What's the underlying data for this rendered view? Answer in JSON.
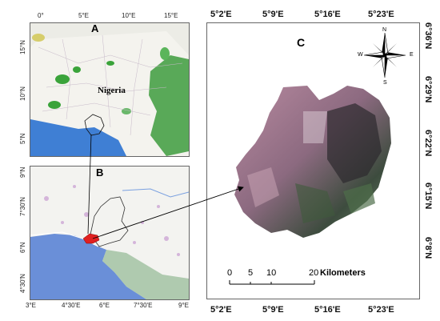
{
  "panels": {
    "a": {
      "label": "A",
      "country_label": "Nigeria",
      "top_ticks": [
        "0°",
        "5°E",
        "10°E",
        "15°E"
      ],
      "left_ticks": [
        "15°N",
        "10°N",
        "5°N"
      ]
    },
    "b": {
      "label": "B",
      "bottom_ticks": [
        "3°E",
        "4°30'E",
        "6°E",
        "7°30'E",
        "9°E"
      ],
      "left_ticks": [
        "9°N",
        "7°30'N",
        "6°N",
        "4°30'N"
      ]
    },
    "c": {
      "label": "C",
      "top_ticks": [
        "5°2'E",
        "5°9'E",
        "5°16'E",
        "5°23'E"
      ],
      "bottom_ticks": [
        "5°2'E",
        "5°9'E",
        "5°16'E",
        "5°23'E"
      ],
      "right_ticks": [
        "6°36'N",
        "6°29'N",
        "6°22'N",
        "6°15'N",
        "6°8'N"
      ],
      "compass": {
        "n": "N",
        "s": "S",
        "e": "E",
        "w": "W"
      },
      "scale_bar": {
        "labels": [
          "0",
          "5",
          "10",
          "20"
        ],
        "unit": "Kilometers"
      }
    }
  },
  "colors": {
    "water": "#3f7fd4",
    "vegetation": "#3aa33a",
    "study_area": "#e02020",
    "frame": "#555555"
  }
}
